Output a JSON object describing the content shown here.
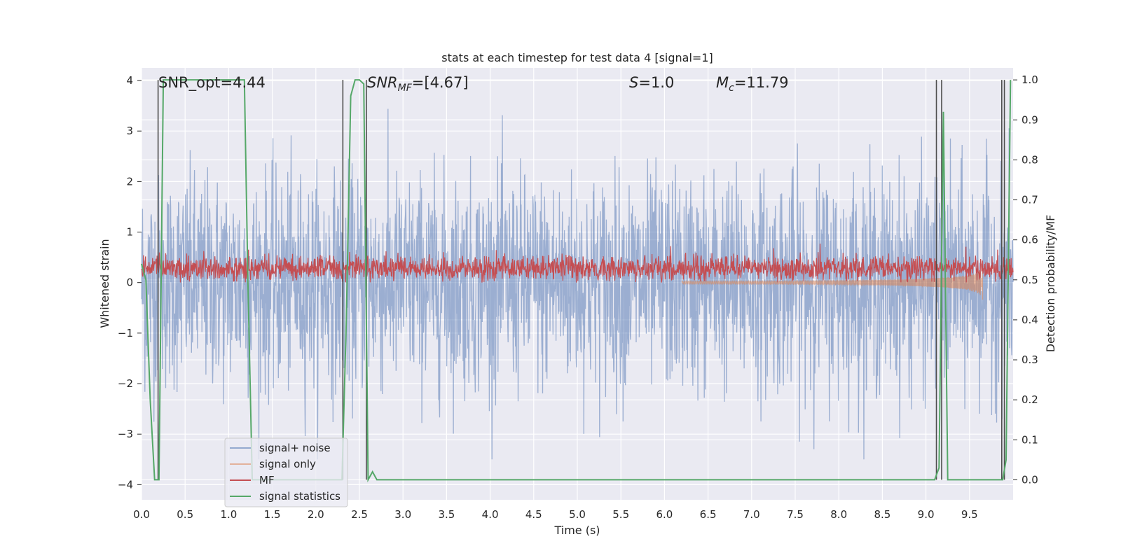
{
  "chart_data": {
    "type": "line",
    "title": "stats at each timestep for test data 4 [signal=1]",
    "xlabel": "Time (s)",
    "ylabel": "Whitened strain",
    "ylabel_right": "Detection probability/MF",
    "xlim": [
      0,
      10
    ],
    "ylim": [
      -4.3,
      4.25
    ],
    "ylim_right": [
      -0.05,
      1.03
    ],
    "grid": true,
    "legend_position": "lower-left",
    "x_ticks": [
      "0.0",
      "0.5",
      "1.0",
      "1.5",
      "2.0",
      "2.5",
      "3.0",
      "3.5",
      "4.0",
      "4.5",
      "5.0",
      "5.5",
      "6.0",
      "6.5",
      "7.0",
      "7.5",
      "8.0",
      "8.5",
      "9.0",
      "9.5"
    ],
    "y_ticks_left": [
      "−4",
      "−3",
      "−2",
      "−1",
      "0",
      "1",
      "2",
      "3",
      "4"
    ],
    "y_ticks_right": [
      "0.0",
      "0.1",
      "0.2",
      "0.3",
      "0.4",
      "0.5",
      "0.6",
      "0.7",
      "0.8",
      "0.9",
      "1.0"
    ],
    "annotations": [
      {
        "text": "SNR_opt=4.44",
        "x": 0.18
      },
      {
        "text": "SNR",
        "sub": "MF",
        "value": "=[4.67]",
        "x": 2.58
      },
      {
        "text": "S",
        "sub": "",
        "value": "=1.0",
        "x": 5.58
      },
      {
        "text": "M",
        "sub": "c",
        "value": "=11.79",
        "x": 6.58
      }
    ],
    "series": [
      {
        "name": "signal+ noise",
        "color": "#4c72b0",
        "axis": "left",
        "description_range": [
          -3.5,
          3.9
        ]
      },
      {
        "name": "signal only",
        "color": "#dd8452",
        "axis": "left",
        "chirp_start": 6.2,
        "chirp_end": 9.65,
        "peak_min": -0.9,
        "peak_max": 0.8
      },
      {
        "name": "MF",
        "color": "#c44e52",
        "axis": "left",
        "range": [
          0.0,
          0.8
        ]
      },
      {
        "name": "signal statistics",
        "color": "#55a868",
        "axis": "right",
        "x": [
          0.0,
          0.05,
          0.1,
          0.15,
          0.2,
          0.25,
          1.18,
          1.22,
          1.27,
          2.3,
          2.35,
          2.4,
          2.45,
          2.5,
          2.55,
          2.6,
          2.65,
          2.7,
          9.1,
          9.15,
          9.2,
          9.25,
          9.88,
          9.92,
          9.97
        ],
        "values": [
          0.54,
          0.5,
          0.2,
          0.0,
          0.0,
          1.0,
          1.0,
          0.5,
          0.0,
          0.0,
          0.4,
          0.96,
          1.0,
          1.0,
          0.99,
          0.0,
          0.02,
          0.0,
          0.0,
          0.03,
          0.92,
          0.0,
          0.0,
          0.05,
          1.0
        ]
      }
    ],
    "vertical_markers": [
      0.19,
      2.31,
      2.58,
      9.12,
      9.18,
      9.87,
      9.9
    ]
  },
  "legend": {
    "items": [
      "signal+ noise",
      "signal only",
      "MF",
      "signal statistics"
    ]
  },
  "colors": {
    "background": "#eaeaf2",
    "grid": "#ffffff",
    "marker": "#4d4d4d"
  }
}
